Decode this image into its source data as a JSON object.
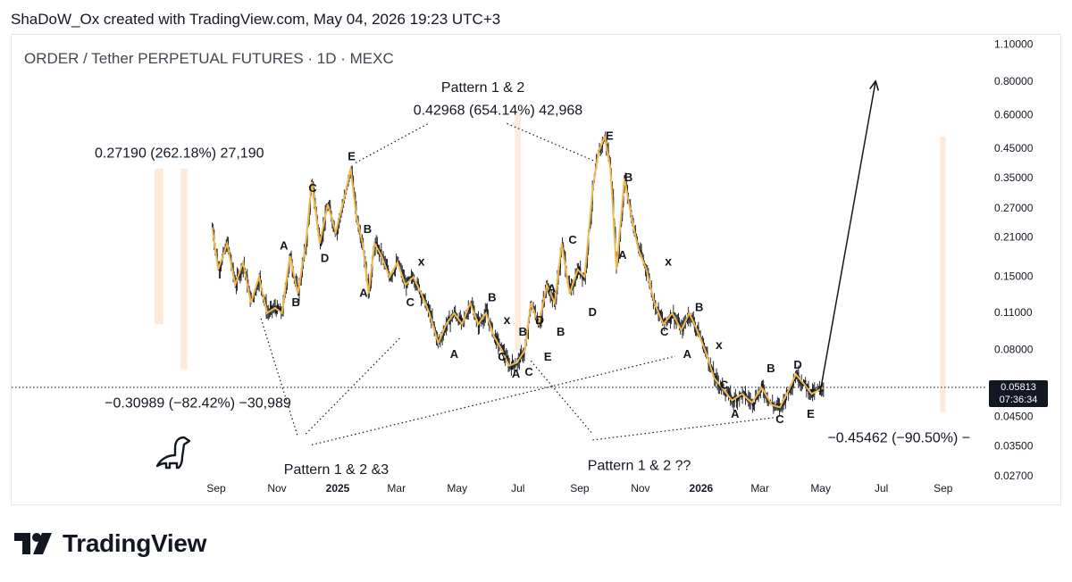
{
  "header": {
    "credit": "ShaDoW_Ox created with TradingView.com, May 04, 2026 19:23 UTC+3"
  },
  "chart": {
    "subtitle": "ORDER / Tether PERPETUAL FUTURES · 1D · MEXC"
  },
  "brand": {
    "name": "TradingView"
  },
  "colors": {
    "candle": "#131722",
    "ma_line": "#f2b84b",
    "highlight": "#fde3cd",
    "price_tag": "#131722"
  },
  "chart_data": {
    "type": "candlestick",
    "title": "ORDER / Tether PERPETUAL FUTURES · 1D · MEXC",
    "xlabel": "",
    "ylabel": "",
    "y_scale": "log",
    "ylim": [
      0.026,
      1.2
    ],
    "x_ticks": [
      "Sep",
      "Nov",
      "2025",
      "Mar",
      "May",
      "Jul",
      "Sep",
      "Nov",
      "2026",
      "Mar",
      "May",
      "Jul",
      "Sep"
    ],
    "x_tick_bold": [
      "2025",
      "2026"
    ],
    "y_ticks": [
      1.1,
      0.8,
      0.6,
      0.45,
      0.35,
      0.27,
      0.21,
      0.15,
      0.11,
      0.08,
      0.045,
      0.035,
      0.027
    ],
    "y_tick_labels": [
      "1.10000",
      "0.80000",
      "0.60000",
      "0.45000",
      "0.35000",
      "0.27000",
      "0.21000",
      "0.15000",
      "0.11000",
      "0.08000",
      "0.04500",
      "0.03500",
      "0.02700"
    ],
    "current_price": {
      "value": 0.05813,
      "label": "0.05813",
      "countdown": "07:36:34"
    },
    "price_path": [
      [
        "2024-08-28",
        0.23
      ],
      [
        "2024-09-03",
        0.16
      ],
      [
        "2024-09-12",
        0.2
      ],
      [
        "2024-09-20",
        0.14
      ],
      [
        "2024-09-28",
        0.17
      ],
      [
        "2024-10-06",
        0.12
      ],
      [
        "2024-10-14",
        0.15
      ],
      [
        "2024-10-22",
        0.11
      ],
      [
        "2024-10-30",
        0.115
      ],
      [
        "2024-11-06",
        0.11
      ],
      [
        "2024-11-14",
        0.18
      ],
      [
        "2024-11-22",
        0.13
      ],
      [
        "2024-11-30",
        0.2
      ],
      [
        "2024-12-06",
        0.34
      ],
      [
        "2024-12-14",
        0.2
      ],
      [
        "2024-12-22",
        0.28
      ],
      [
        "2024-12-30",
        0.22
      ],
      [
        "2025-01-08",
        0.3
      ],
      [
        "2025-01-14",
        0.38
      ],
      [
        "2025-01-20",
        0.25
      ],
      [
        "2025-01-26",
        0.2
      ],
      [
        "2025-02-01",
        0.13
      ],
      [
        "2025-02-07",
        0.2
      ],
      [
        "2025-02-14",
        0.18
      ],
      [
        "2025-02-22",
        0.15
      ],
      [
        "2025-03-02",
        0.17
      ],
      [
        "2025-03-10",
        0.14
      ],
      [
        "2025-03-18",
        0.15
      ],
      [
        "2025-03-26",
        0.13
      ],
      [
        "2025-04-03",
        0.11
      ],
      [
        "2025-04-12",
        0.085
      ],
      [
        "2025-04-20",
        0.1
      ],
      [
        "2025-04-28",
        0.11
      ],
      [
        "2025-05-06",
        0.1
      ],
      [
        "2025-05-14",
        0.12
      ],
      [
        "2025-05-22",
        0.1
      ],
      [
        "2025-05-30",
        0.11
      ],
      [
        "2025-06-07",
        0.09
      ],
      [
        "2025-06-15",
        0.08
      ],
      [
        "2025-06-22",
        0.07
      ],
      [
        "2025-06-30",
        0.072
      ],
      [
        "2025-07-08",
        0.08
      ],
      [
        "2025-07-14",
        0.12
      ],
      [
        "2025-07-22",
        0.1
      ],
      [
        "2025-07-30",
        0.14
      ],
      [
        "2025-08-07",
        0.12
      ],
      [
        "2025-08-14",
        0.2
      ],
      [
        "2025-08-22",
        0.13
      ],
      [
        "2025-08-30",
        0.16
      ],
      [
        "2025-09-06",
        0.15
      ],
      [
        "2025-09-14",
        0.32
      ],
      [
        "2025-09-20",
        0.44
      ],
      [
        "2025-09-26",
        0.5
      ],
      [
        "2025-10-02",
        0.38
      ],
      [
        "2025-10-08",
        0.16
      ],
      [
        "2025-10-16",
        0.35
      ],
      [
        "2025-10-24",
        0.24
      ],
      [
        "2025-10-30",
        0.19
      ],
      [
        "2025-11-07",
        0.16
      ],
      [
        "2025-11-15",
        0.12
      ],
      [
        "2025-11-24",
        0.1
      ],
      [
        "2025-12-03",
        0.11
      ],
      [
        "2025-12-12",
        0.095
      ],
      [
        "2025-12-20",
        0.11
      ],
      [
        "2025-12-28",
        0.095
      ],
      [
        "2026-01-06",
        0.078
      ],
      [
        "2026-01-14",
        0.063
      ],
      [
        "2026-01-22",
        0.058
      ],
      [
        "2026-02-01",
        0.052
      ],
      [
        "2026-02-11",
        0.055
      ],
      [
        "2026-02-21",
        0.051
      ],
      [
        "2026-03-03",
        0.058
      ],
      [
        "2026-03-13",
        0.05
      ],
      [
        "2026-03-21",
        0.049
      ],
      [
        "2026-03-29",
        0.056
      ],
      [
        "2026-04-06",
        0.065
      ],
      [
        "2026-04-14",
        0.06
      ],
      [
        "2026-04-22",
        0.055
      ],
      [
        "2026-04-30",
        0.057
      ],
      [
        "2026-05-04",
        0.05813
      ]
    ],
    "highlight_bands": [
      {
        "from": "2024-07-01",
        "to": "2024-07-10",
        "top": 0.38,
        "bottom": 0.1
      },
      {
        "from": "2024-07-27",
        "to": "2024-08-03",
        "top": 0.38,
        "bottom": 0.068
      },
      {
        "from": "2025-06-28",
        "to": "2025-07-04",
        "top": 0.62,
        "bottom": 0.08
      },
      {
        "from": "2026-08-29",
        "to": "2026-09-02",
        "top": 0.5,
        "bottom": 0.047
      }
    ],
    "wave_labels": [
      {
        "label": "C",
        "date": "2024-12-07",
        "price": 0.32
      },
      {
        "label": "A",
        "date": "2024-11-08",
        "price": 0.195
      },
      {
        "label": "B",
        "date": "2024-11-20",
        "price": 0.12
      },
      {
        "label": "D",
        "date": "2024-12-19",
        "price": 0.175
      },
      {
        "label": "E",
        "date": "2025-01-15",
        "price": 0.42
      },
      {
        "label": "B",
        "date": "2025-01-31",
        "price": 0.225
      },
      {
        "label": "A",
        "date": "2025-01-27",
        "price": 0.13
      },
      {
        "label": "C",
        "date": "2025-03-15",
        "price": 0.12
      },
      {
        "label": "x",
        "date": "2025-03-26",
        "price": 0.17
      },
      {
        "label": "B",
        "date": "2025-06-05",
        "price": 0.125
      },
      {
        "label": "A",
        "date": "2025-04-28",
        "price": 0.077
      },
      {
        "label": "x",
        "date": "2025-06-20",
        "price": 0.103
      },
      {
        "label": "C",
        "date": "2025-06-15",
        "price": 0.075
      },
      {
        "label": "A",
        "date": "2025-06-29",
        "price": 0.065
      },
      {
        "label": "B",
        "date": "2025-07-06",
        "price": 0.093
      },
      {
        "label": "C",
        "date": "2025-07-12",
        "price": 0.066
      },
      {
        "label": "D",
        "date": "2025-07-23",
        "price": 0.103
      },
      {
        "label": "E",
        "date": "2025-07-31",
        "price": 0.075
      },
      {
        "label": "A",
        "date": "2025-08-04",
        "price": 0.135
      },
      {
        "label": "B",
        "date": "2025-08-13",
        "price": 0.093
      },
      {
        "label": "C",
        "date": "2025-08-25",
        "price": 0.205
      },
      {
        "label": "D",
        "date": "2025-09-14",
        "price": 0.11
      },
      {
        "label": "E",
        "date": "2025-10-01",
        "price": 0.5
      },
      {
        "label": "B",
        "date": "2025-10-20",
        "price": 0.35
      },
      {
        "label": "A",
        "date": "2025-10-14",
        "price": 0.18
      },
      {
        "label": "x",
        "date": "2025-11-29",
        "price": 0.17
      },
      {
        "label": "C",
        "date": "2025-11-25",
        "price": 0.093
      },
      {
        "label": "B",
        "date": "2025-12-30",
        "price": 0.115
      },
      {
        "label": "A",
        "date": "2025-12-18",
        "price": 0.077
      },
      {
        "label": "x",
        "date": "2026-01-19",
        "price": 0.083
      },
      {
        "label": "C",
        "date": "2026-01-24",
        "price": 0.059
      },
      {
        "label": "A",
        "date": "2026-02-04",
        "price": 0.046
      },
      {
        "label": "B",
        "date": "2026-03-12",
        "price": 0.068
      },
      {
        "label": "D",
        "date": "2026-04-08",
        "price": 0.07
      },
      {
        "label": "C",
        "date": "2026-03-21",
        "price": 0.044
      },
      {
        "label": "E",
        "date": "2026-04-21",
        "price": 0.046
      }
    ],
    "annotations": [
      {
        "text": "0.27190 (262.18%) 27,190",
        "date": "2024-05-02",
        "price": 0.432
      },
      {
        "text": "Pattern 1 & 2",
        "date": "2025-04-15",
        "price": 0.76
      },
      {
        "text": "0.42968 (654.14%) 42,968",
        "date": "2025-03-18",
        "price": 0.625
      },
      {
        "text": "−0.30989 (−82.42%) −30,989",
        "date": "2024-05-12",
        "price": 0.0505
      },
      {
        "text": "Pattern 1 & 2 &3",
        "date": "2024-11-08",
        "price": 0.0285
      },
      {
        "text": "Pattern 1 & 2 ??",
        "date": "2025-09-09",
        "price": 0.0295
      },
      {
        "text": "−0.45462 (−90.50%) −",
        "date": "2026-05-08",
        "price": 0.0375
      }
    ],
    "dotted_lines": [
      [
        [
          "2025-01-19",
          0.4
        ],
        [
          "2025-04-02",
          0.56
        ]
      ],
      [
        [
          "2025-06-20",
          0.56
        ],
        [
          "2025-09-20",
          0.4
        ]
      ],
      [
        [
          "2024-10-16",
          0.105
        ],
        [
          "2024-11-22",
          0.038
        ]
      ],
      [
        [
          "2024-11-30",
          0.039
        ],
        [
          "2025-03-06",
          0.09
        ]
      ],
      [
        [
          "2024-12-06",
          0.0355
        ],
        [
          "2025-12-06",
          0.076
        ]
      ],
      [
        [
          "2025-07-14",
          0.073
        ],
        [
          "2025-09-14",
          0.039
        ]
      ],
      [
        [
          "2025-09-14",
          0.037
        ],
        [
          "2026-03-18",
          0.045
        ]
      ]
    ],
    "projection": [
      [
        "2026-04-30",
        0.0545
      ],
      [
        "2026-06-25",
        0.8
      ]
    ]
  }
}
